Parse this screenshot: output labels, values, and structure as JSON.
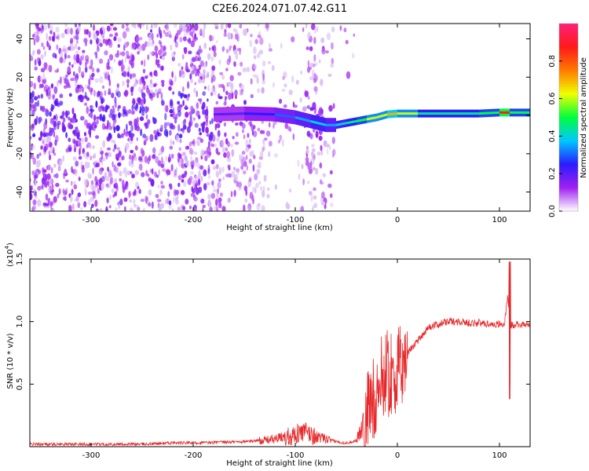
{
  "title": "C2E6.2024.071.07.42.G11",
  "colors": {
    "axis": "#000000",
    "snr_line": "#e8292b",
    "ridge_peak": "#e8292b"
  },
  "chart_data": [
    {
      "type": "heatmap",
      "xlabel": "Height of straight line (km)",
      "ylabel": "Frequency (Hz)",
      "xlim": [
        -360,
        130
      ],
      "ylim": [
        -50,
        48
      ],
      "x_ticks": [
        {
          "value": -300,
          "label": "-300"
        },
        {
          "value": -200,
          "label": "-200"
        },
        {
          "value": -100,
          "label": "-100"
        },
        {
          "value": 0,
          "label": "0"
        },
        {
          "value": 100,
          "label": "100"
        }
      ],
      "y_ticks": [
        {
          "value": -40,
          "label": "-40"
        },
        {
          "value": -20,
          "label": "-20"
        },
        {
          "value": 0,
          "label": "0"
        },
        {
          "value": 20,
          "label": "20"
        },
        {
          "value": 40,
          "label": "40"
        }
      ],
      "colorbar": {
        "label": "Normalized spectral amplitude",
        "range": [
          0,
          1
        ],
        "ticks": [
          {
            "value": 0.0,
            "label": "0.0"
          },
          {
            "value": 0.2,
            "label": "0.2"
          },
          {
            "value": 0.4,
            "label": "0.4"
          },
          {
            "value": 0.6,
            "label": "0.6"
          },
          {
            "value": 0.8,
            "label": "0.8"
          }
        ],
        "colormap": [
          "#ffffff",
          "#a020f0",
          "#2a1cff",
          "#00c8ff",
          "#00ff3c",
          "#f0ff00",
          "#ff7a00",
          "#ff1a1a",
          "#ff1f7a"
        ]
      },
      "ridge": {
        "x": [
          -180,
          -150,
          -120,
          -100,
          -85,
          -70,
          -60,
          -50,
          -40,
          -30,
          -20,
          -10,
          0,
          20,
          50,
          80,
          100,
          110,
          130
        ],
        "y": [
          0.5,
          1,
          0.5,
          -1,
          -3,
          -5,
          -5,
          -4,
          -3,
          -2,
          -1,
          0.5,
          1,
          1,
          1,
          1,
          1.5,
          1.5,
          1.5
        ],
        "amplitude": [
          0.2,
          0.25,
          0.3,
          0.35,
          0.4,
          0.35,
          0.4,
          0.45,
          0.5,
          0.6,
          0.6,
          0.7,
          0.6,
          0.45,
          0.45,
          0.5,
          0.9,
          0.5,
          0.45
        ]
      }
    },
    {
      "type": "line",
      "xlabel": "Height of straight line (km)",
      "ylabel": "SNR (10 * v/v)",
      "y_multiplier_label": "(x10",
      "y_multiplier_exponent": "4",
      "xlim": [
        -360,
        130
      ],
      "ylim": [
        0,
        1.5
      ],
      "x_ticks": [
        {
          "value": -300,
          "label": "-300"
        },
        {
          "value": -200,
          "label": "-200"
        },
        {
          "value": -100,
          "label": "-100"
        },
        {
          "value": 0,
          "label": "0"
        },
        {
          "value": 100,
          "label": "100"
        }
      ],
      "y_ticks": [
        {
          "value": 0.5,
          "label": "0.5"
        },
        {
          "value": 1.0,
          "label": "1.0"
        },
        {
          "value": 1.5,
          "label": "1.5"
        }
      ],
      "series": [
        {
          "x": [
            -360,
            -300,
            -250,
            -220,
            -200,
            -150,
            -120,
            -100,
            -90,
            -80,
            -70,
            -60,
            -50,
            -40,
            -30,
            -20,
            -15,
            -10,
            -5,
            0,
            5,
            10,
            20,
            30,
            40,
            50,
            60,
            70,
            80,
            90,
            100,
            105,
            108,
            110,
            112,
            115,
            120,
            130
          ],
          "y": [
            0.02,
            0.02,
            0.02,
            0.03,
            0.03,
            0.04,
            0.06,
            0.1,
            0.12,
            0.08,
            0.06,
            0.04,
            0.03,
            0.05,
            0.25,
            0.45,
            0.55,
            0.6,
            0.55,
            0.6,
            0.65,
            0.75,
            0.85,
            0.95,
            0.98,
            1.0,
            1.0,
            0.99,
            0.99,
            0.98,
            0.98,
            0.98,
            1.2,
            0.98,
            0.97,
            0.98,
            0.98,
            0.97
          ]
        }
      ]
    }
  ]
}
